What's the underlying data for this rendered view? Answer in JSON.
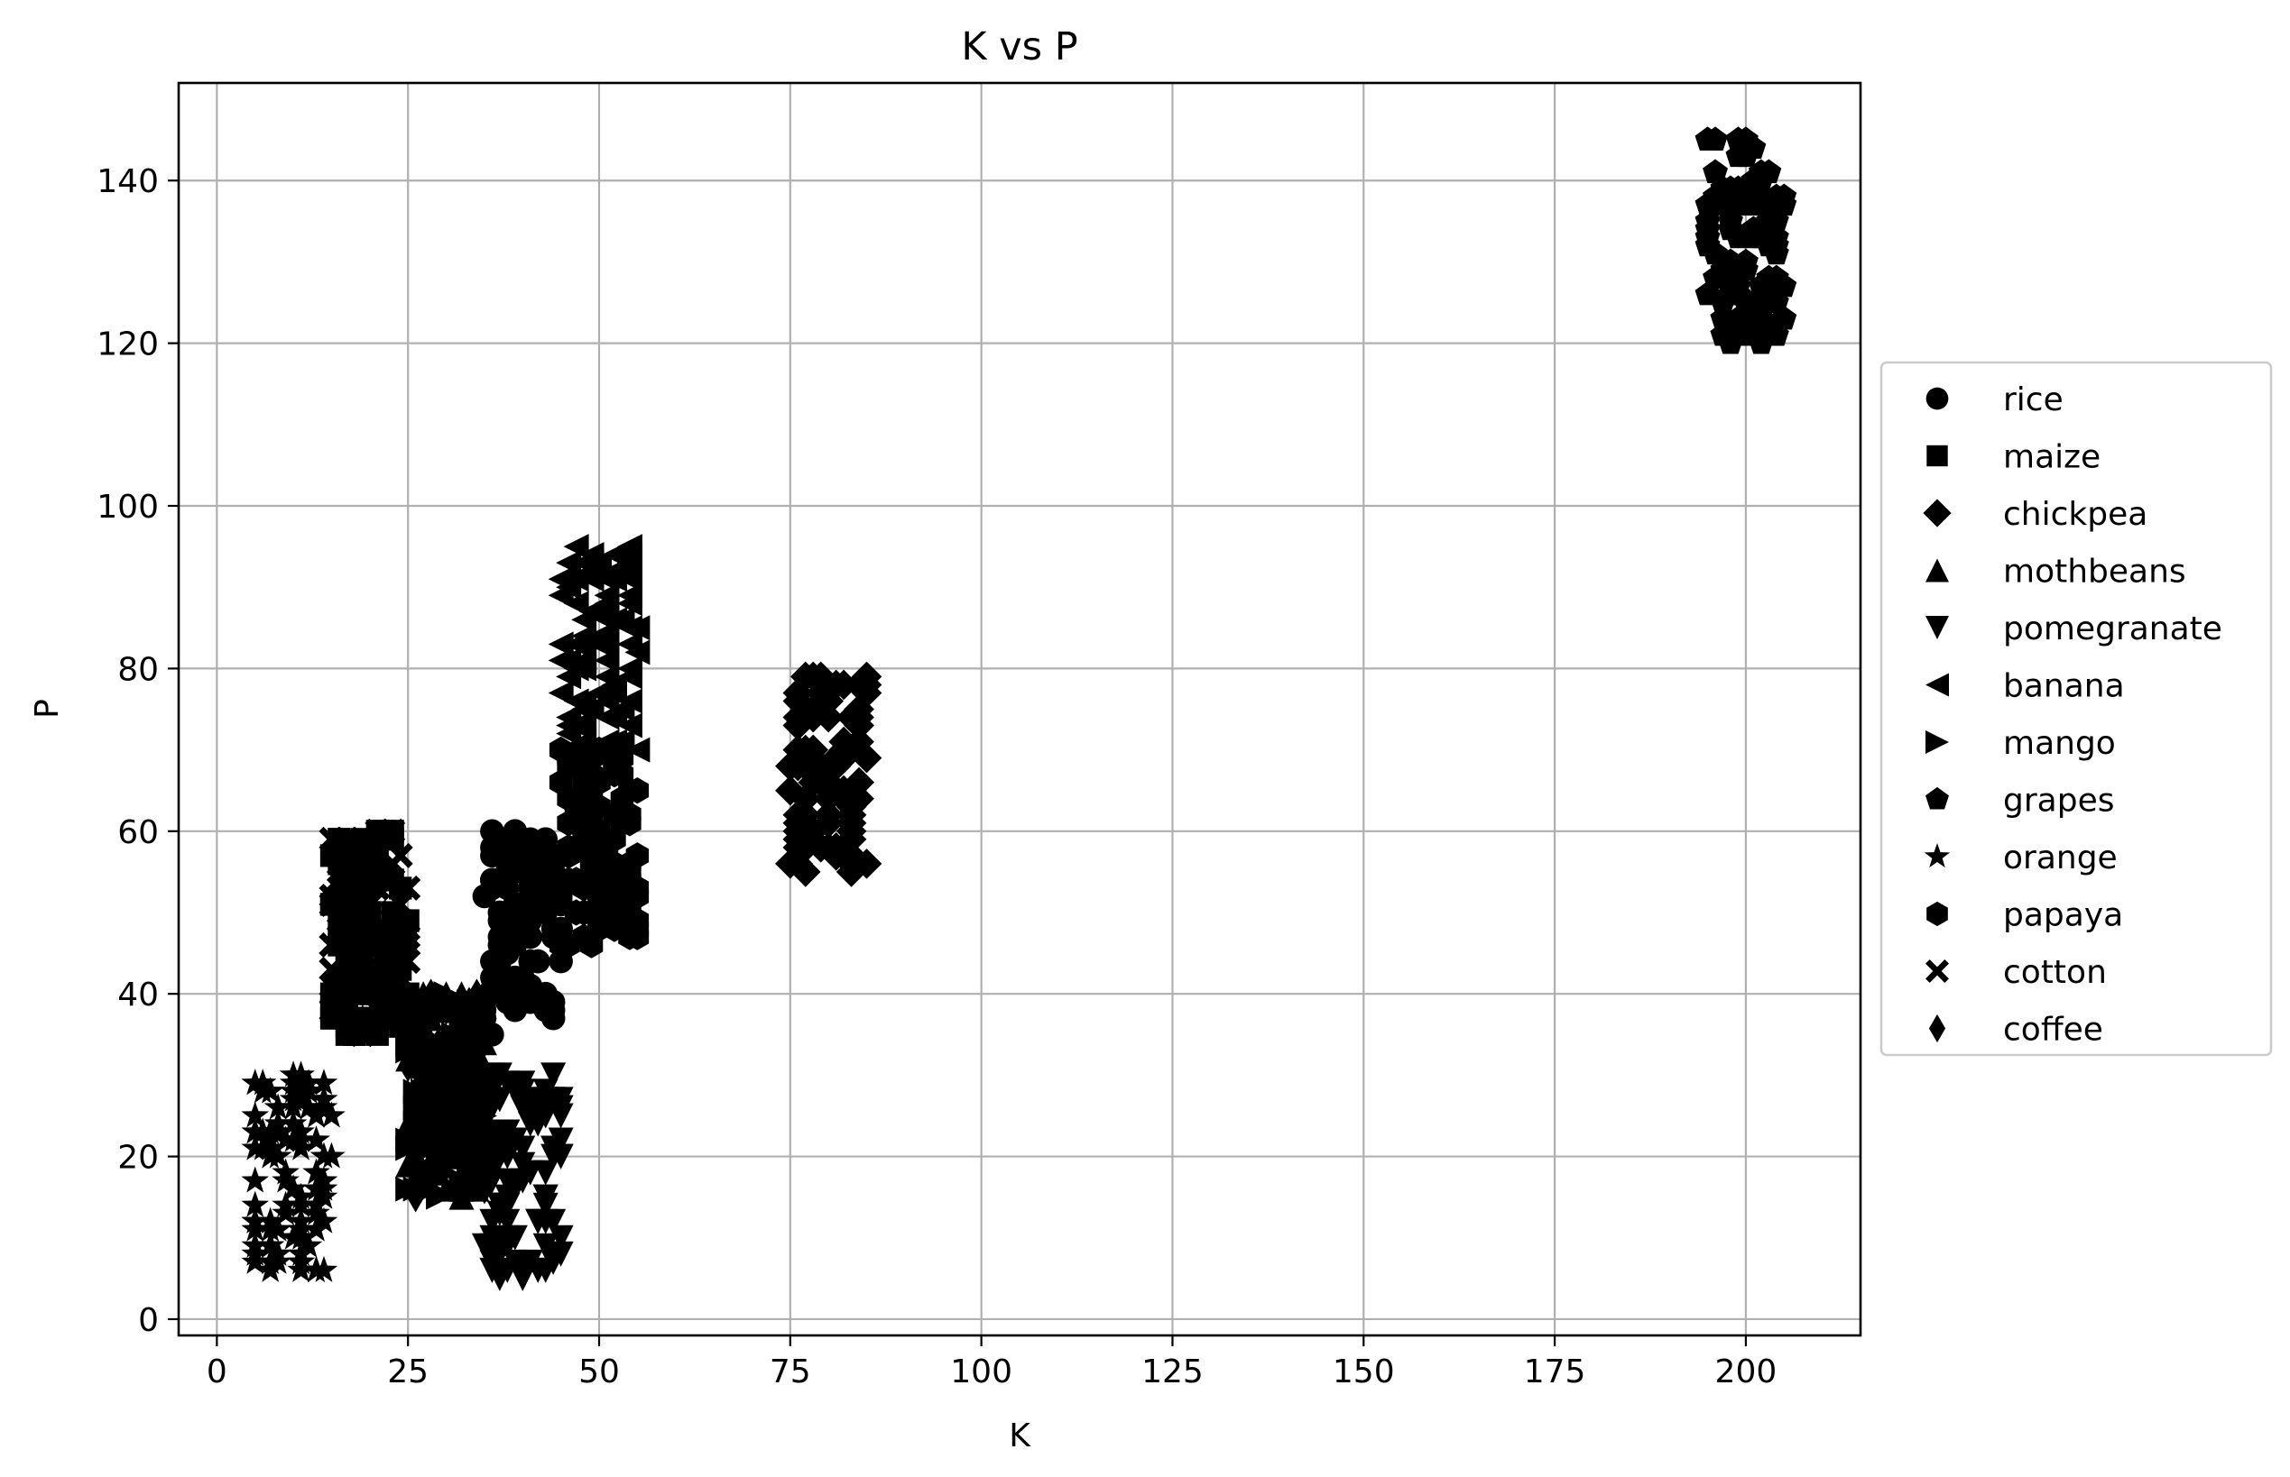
{
  "chart_data": {
    "type": "scatter",
    "title": "K vs P",
    "xlabel": "K",
    "ylabel": "P",
    "xlim": [
      -5,
      215
    ],
    "ylim": [
      -2,
      152
    ],
    "xticks": [
      0,
      25,
      50,
      75,
      100,
      125,
      150,
      175,
      200
    ],
    "yticks": [
      0,
      20,
      40,
      60,
      80,
      100,
      120,
      140
    ],
    "grid": true,
    "legend_position": "outside-right",
    "marker_color": "#000000",
    "series": [
      {
        "name": "rice",
        "marker": "circle",
        "k_range": [
          35,
          45
        ],
        "p_range": [
          35,
          60
        ]
      },
      {
        "name": "maize",
        "marker": "square",
        "k_range": [
          15,
          25
        ],
        "p_range": [
          35,
          60
        ]
      },
      {
        "name": "chickpea",
        "marker": "diamond",
        "k_range": [
          75,
          85
        ],
        "p_range": [
          55,
          80
        ]
      },
      {
        "name": "mothbeans",
        "marker": "triangle-up",
        "k_range": [
          25,
          35
        ],
        "p_range": [
          15,
          40
        ]
      },
      {
        "name": "pomegranate",
        "marker": "triangle-down",
        "k_range": [
          35,
          45
        ],
        "p_range": [
          5,
          30
        ]
      },
      {
        "name": "banana",
        "marker": "triangle-left",
        "k_range": [
          45,
          55
        ],
        "p_range": [
          70,
          95
        ]
      },
      {
        "name": "mango",
        "marker": "triangle-right",
        "k_range": [
          25,
          35
        ],
        "p_range": [
          15,
          40
        ]
      },
      {
        "name": "grapes",
        "marker": "pentagon",
        "k_range": [
          195,
          205
        ],
        "p_range": [
          120,
          145
        ]
      },
      {
        "name": "orange",
        "marker": "star",
        "k_range": [
          5,
          15
        ],
        "p_range": [
          5,
          30
        ]
      },
      {
        "name": "papaya",
        "marker": "hexagon",
        "k_range": [
          45,
          55
        ],
        "p_range": [
          46,
          70
        ]
      },
      {
        "name": "cotton",
        "marker": "x",
        "k_range": [
          15,
          25
        ],
        "p_range": [
          35,
          60
        ]
      },
      {
        "name": "coffee",
        "marker": "thin-diamond",
        "k_range": [
          25,
          35
        ],
        "p_range": [
          15,
          40
        ]
      }
    ]
  }
}
